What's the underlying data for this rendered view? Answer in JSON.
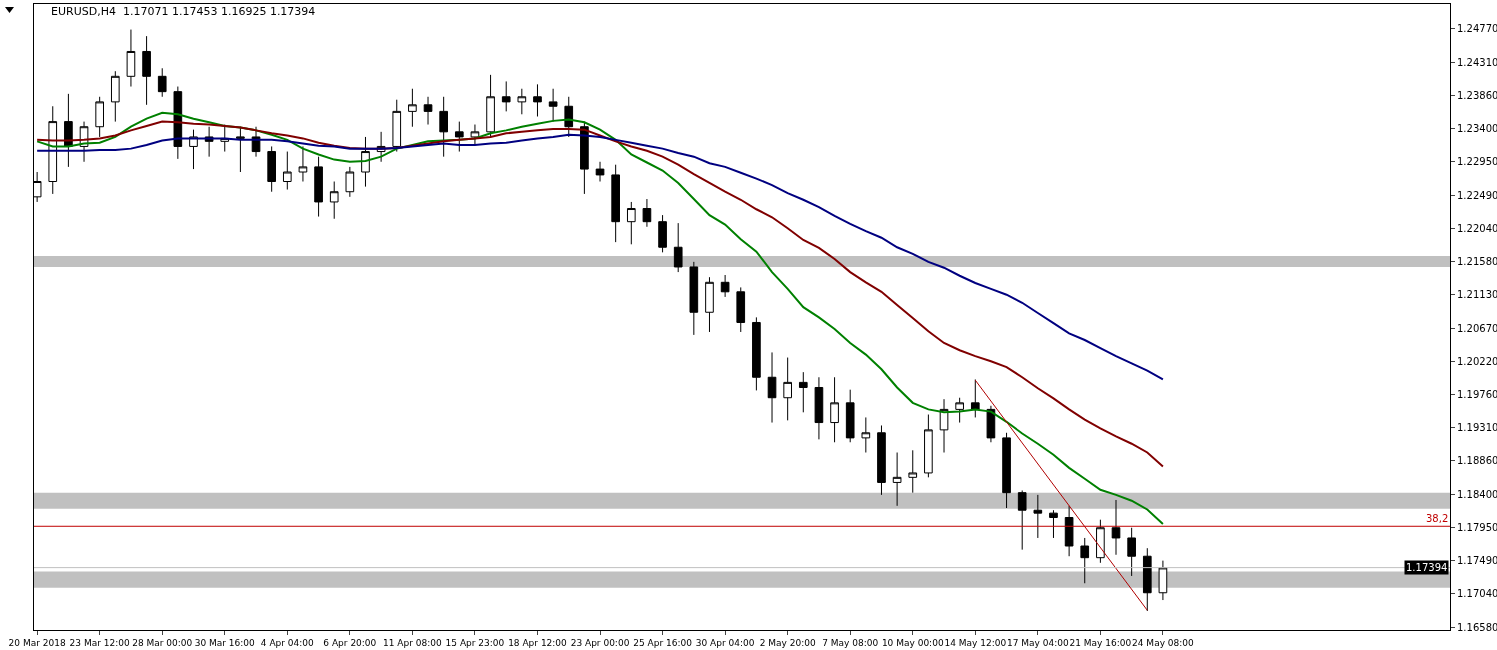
{
  "chart_data": {
    "type": "candlestick",
    "title": "EURUSD,H4  1.17071 1.17453 1.16925 1.17394",
    "categories": [
      "20 Mar 2018",
      null,
      null,
      null,
      "23 Mar 12:00",
      null,
      null,
      null,
      "28 Mar 00:00",
      null,
      null,
      null,
      "30 Mar 16:00",
      null,
      null,
      null,
      "4 Apr 04:00",
      null,
      null,
      null,
      "6 Apr 20:00",
      null,
      null,
      null,
      "11 Apr 08:00",
      null,
      null,
      null,
      "15 Apr 23:00",
      null,
      null,
      null,
      "18 Apr 12:00",
      null,
      null,
      null,
      "23 Apr 00:00",
      null,
      null,
      null,
      "25 Apr 16:00",
      null,
      null,
      null,
      "30 Apr 04:00",
      null,
      null,
      null,
      "2 May 20:00",
      null,
      null,
      null,
      "7 May 08:00",
      null,
      null,
      null,
      "10 May 00:00",
      null,
      null,
      null,
      "14 May 12:00",
      null,
      null,
      null,
      "17 May 04:00",
      null,
      null,
      null,
      "21 May 16:00",
      null,
      null,
      null,
      "24 May 08:00"
    ],
    "ohlc": [
      [
        1.2247,
        1.2281,
        1.224,
        1.2268
      ],
      [
        1.2268,
        1.2371,
        1.2251,
        1.235
      ],
      [
        1.235,
        1.2388,
        1.2288,
        1.2316
      ],
      [
        1.2316,
        1.235,
        1.2295,
        1.2343
      ],
      [
        1.2343,
        1.2384,
        1.2329,
        1.2377
      ],
      [
        1.2377,
        1.2419,
        1.235,
        1.2412
      ],
      [
        1.2412,
        1.2476,
        1.2398,
        1.2446
      ],
      [
        1.2446,
        1.2467,
        1.2373,
        1.2412
      ],
      [
        1.2412,
        1.2423,
        1.2384,
        1.2391
      ],
      [
        1.2391,
        1.2398,
        1.2299,
        1.2316
      ],
      [
        1.2316,
        1.2339,
        1.2285,
        1.2329
      ],
      [
        1.2329,
        1.2343,
        1.2302,
        1.2323
      ],
      [
        1.2323,
        1.2346,
        1.2309,
        1.2327
      ],
      [
        1.2327,
        1.2343,
        1.2281,
        1.2329
      ],
      [
        1.2329,
        1.2343,
        1.2302,
        1.2309
      ],
      [
        1.2309,
        1.2316,
        1.2254,
        1.2268
      ],
      [
        1.2268,
        1.2309,
        1.2257,
        1.2281
      ],
      [
        1.2281,
        1.2316,
        1.2268,
        1.2288
      ],
      [
        1.2288,
        1.2302,
        1.222,
        1.224
      ],
      [
        1.224,
        1.2268,
        1.2217,
        1.2254
      ],
      [
        1.2254,
        1.2288,
        1.2247,
        1.2281
      ],
      [
        1.2281,
        1.2329,
        1.2261,
        1.2309
      ],
      [
        1.2309,
        1.2336,
        1.2295,
        1.2316
      ],
      [
        1.2316,
        1.238,
        1.2309,
        1.2364
      ],
      [
        1.2364,
        1.2395,
        1.2343,
        1.2373
      ],
      [
        1.2373,
        1.2384,
        1.2346,
        1.2364
      ],
      [
        1.2364,
        1.2384,
        1.2302,
        1.2336
      ],
      [
        1.2336,
        1.235,
        1.2309,
        1.2329
      ],
      [
        1.2329,
        1.2346,
        1.2318,
        1.2336
      ],
      [
        1.2336,
        1.2414,
        1.2329,
        1.2384
      ],
      [
        1.2384,
        1.2405,
        1.2364,
        1.2377
      ],
      [
        1.2377,
        1.2395,
        1.236,
        1.2384
      ],
      [
        1.2384,
        1.2401,
        1.2357,
        1.2377
      ],
      [
        1.2377,
        1.2395,
        1.235,
        1.2371
      ],
      [
        1.2371,
        1.2384,
        1.2329,
        1.2343
      ],
      [
        1.2343,
        1.235,
        1.2251,
        1.2285
      ],
      [
        1.2285,
        1.2295,
        1.2268,
        1.2277
      ],
      [
        1.2277,
        1.2291,
        1.2185,
        1.2213
      ],
      [
        1.2213,
        1.224,
        1.2182,
        1.2231
      ],
      [
        1.2231,
        1.2244,
        1.2206,
        1.2213
      ],
      [
        1.2213,
        1.2222,
        1.2171,
        1.2178
      ],
      [
        1.2178,
        1.2211,
        1.2144,
        1.2151
      ],
      [
        1.2151,
        1.2158,
        1.2058,
        1.2089
      ],
      [
        1.2089,
        1.2137,
        1.2062,
        1.213
      ],
      [
        1.213,
        1.214,
        1.211,
        1.2117
      ],
      [
        1.2117,
        1.2123,
        1.2062,
        1.2075
      ],
      [
        1.2075,
        1.2082,
        1.1982,
        1.2
      ],
      [
        1.2,
        1.2034,
        1.1938,
        1.1972
      ],
      [
        1.1972,
        1.2027,
        1.1941,
        1.1993
      ],
      [
        1.1993,
        1.2007,
        1.1952,
        1.1986
      ],
      [
        1.1986,
        1.2,
        1.1915,
        1.1938
      ],
      [
        1.1938,
        1.2,
        1.1911,
        1.1965
      ],
      [
        1.1965,
        1.1983,
        1.1911,
        1.1917
      ],
      [
        1.1917,
        1.1945,
        1.1897,
        1.1924
      ],
      [
        1.1924,
        1.1934,
        1.1839,
        1.1856
      ],
      [
        1.1856,
        1.1897,
        1.1824,
        1.1863
      ],
      [
        1.1863,
        1.19,
        1.1842,
        1.1869
      ],
      [
        1.1869,
        1.1949,
        1.1863,
        1.1928
      ],
      [
        1.1928,
        1.197,
        1.1897,
        1.1956
      ],
      [
        1.1956,
        1.1972,
        1.1938,
        1.1965
      ],
      [
        1.1965,
        1.1997,
        1.1945,
        1.1956
      ],
      [
        1.1956,
        1.1961,
        1.1911,
        1.1917
      ],
      [
        1.1917,
        1.1924,
        1.1821,
        1.1842
      ],
      [
        1.1842,
        1.1845,
        1.1764,
        1.1818
      ],
      [
        1.1818,
        1.1839,
        1.178,
        1.1814
      ],
      [
        1.1814,
        1.1818,
        1.178,
        1.1808
      ],
      [
        1.1808,
        1.1824,
        1.1755,
        1.1769
      ],
      [
        1.1769,
        1.178,
        1.1718,
        1.1753
      ],
      [
        1.1753,
        1.1805,
        1.1746,
        1.1794
      ],
      [
        1.1794,
        1.1832,
        1.1757,
        1.178
      ],
      [
        1.178,
        1.1794,
        1.1728,
        1.1755
      ],
      [
        1.1755,
        1.1766,
        1.168,
        1.1705
      ],
      [
        1.1705,
        1.1749,
        1.1695,
        1.1739
      ]
    ],
    "series": [
      {
        "type": "line",
        "color": "#008000",
        "values": [
          1.2323,
          1.2316,
          1.2316,
          1.232,
          1.2321,
          1.2329,
          1.2343,
          1.2354,
          1.2362,
          1.236,
          1.2354,
          1.2349,
          1.2344,
          1.2342,
          1.2338,
          1.2332,
          1.2325,
          1.2313,
          1.2305,
          1.2298,
          1.2295,
          1.2296,
          1.2302,
          1.2313,
          1.2318,
          1.2323,
          1.2324,
          1.2325,
          1.2327,
          1.2334,
          1.2338,
          1.2343,
          1.2347,
          1.2351,
          1.2353,
          1.2349,
          1.2339,
          1.2325,
          1.2305,
          1.2294,
          1.2283,
          1.2266,
          1.2244,
          1.2222,
          1.2209,
          1.2189,
          1.2172,
          1.2144,
          1.2121,
          1.2096,
          1.2082,
          1.2066,
          1.2047,
          1.2031,
          1.2011,
          1.1986,
          1.1965,
          1.1956,
          1.1952,
          1.1953,
          1.1956,
          1.1953,
          1.1939,
          1.1923,
          1.1909,
          1.1894,
          1.1876,
          1.1861,
          1.1846,
          1.1839,
          1.1831,
          1.1819,
          1.1799
        ]
      },
      {
        "type": "line",
        "color": "#800000",
        "values": [
          1.2325,
          1.2324,
          1.2324,
          1.2325,
          1.2327,
          1.2331,
          1.2338,
          1.2344,
          1.235,
          1.2349,
          1.2347,
          1.2346,
          1.2344,
          1.2342,
          1.2338,
          1.2334,
          1.2331,
          1.2327,
          1.2321,
          1.2317,
          1.2314,
          1.2313,
          1.2313,
          1.2314,
          1.2317,
          1.232,
          1.2323,
          1.2325,
          1.2327,
          1.2329,
          1.2334,
          1.2336,
          1.2338,
          1.234,
          1.234,
          1.2339,
          1.2331,
          1.2323,
          1.2316,
          1.231,
          1.2302,
          1.2291,
          1.2278,
          1.2266,
          1.2254,
          1.2243,
          1.223,
          1.2219,
          1.2204,
          1.2188,
          1.2177,
          1.2162,
          1.2144,
          1.213,
          1.2117,
          1.2099,
          1.2081,
          1.2063,
          1.2047,
          1.2037,
          1.2029,
          1.2022,
          1.2014,
          1.2,
          1.1985,
          1.1971,
          1.1956,
          1.1942,
          1.193,
          1.1919,
          1.1909,
          1.1897,
          1.1878
        ]
      },
      {
        "type": "line",
        "color": "#000080",
        "values": [
          1.231,
          1.231,
          1.231,
          1.231,
          1.2311,
          1.2311,
          1.2313,
          1.2318,
          1.2324,
          1.2327,
          1.2327,
          1.2327,
          1.2327,
          1.2325,
          1.2325,
          1.2325,
          1.2323,
          1.232,
          1.2317,
          1.2316,
          1.2313,
          1.2313,
          1.2313,
          1.2314,
          1.2316,
          1.2318,
          1.232,
          1.2318,
          1.2318,
          1.232,
          1.2321,
          1.2324,
          1.2327,
          1.2329,
          1.2332,
          1.2331,
          1.2329,
          1.2325,
          1.2321,
          1.2317,
          1.2313,
          1.2307,
          1.2302,
          1.2293,
          1.2288,
          1.228,
          1.2272,
          1.2263,
          1.2252,
          1.2243,
          1.2233,
          1.2221,
          1.221,
          1.22,
          1.2191,
          1.2178,
          1.2169,
          1.2158,
          1.215,
          1.2139,
          1.2129,
          1.2121,
          1.2113,
          1.2102,
          1.2088,
          1.2074,
          1.206,
          1.2051,
          1.204,
          1.2029,
          1.2019,
          1.2009,
          1.1997
        ]
      },
      {
        "type": "line",
        "color": "#b00000",
        "values": [
          null,
          null,
          null,
          null,
          null,
          null,
          null,
          null,
          null,
          null,
          null,
          null,
          null,
          null,
          null,
          null,
          null,
          null,
          null,
          null,
          null,
          null,
          null,
          null,
          null,
          null,
          null,
          null,
          null,
          null,
          null,
          null,
          null,
          null,
          null,
          null,
          null,
          null,
          null,
          null,
          null,
          null,
          null,
          null,
          null,
          null,
          null,
          null,
          null,
          null,
          null,
          null,
          null,
          null,
          null,
          null,
          null,
          null,
          null,
          null,
          1.1996,
          null,
          null,
          null,
          null,
          null,
          null,
          null,
          null,
          null,
          null,
          1.1681,
          null
        ]
      }
    ],
    "ylim": [
      1.1654,
      1.2511
    ],
    "yticks": [
      {
        "value": 1.2477,
        "label": "1.24770"
      },
      {
        "value": 1.2431,
        "label": "1.24310"
      },
      {
        "value": 1.2386,
        "label": "1.23860"
      },
      {
        "value": 1.234,
        "label": "1.23400"
      },
      {
        "value": 1.2295,
        "label": "1.22950"
      },
      {
        "value": 1.2249,
        "label": "1.22490"
      },
      {
        "value": 1.2204,
        "label": "1.22040"
      },
      {
        "value": 1.2158,
        "label": "1.21580"
      },
      {
        "value": 1.2113,
        "label": "1.21130"
      },
      {
        "value": 1.2067,
        "label": "1.20670"
      },
      {
        "value": 1.2022,
        "label": "1.20220"
      },
      {
        "value": 1.1976,
        "label": "1.19760"
      },
      {
        "value": 1.1931,
        "label": "1.19310"
      },
      {
        "value": 1.1886,
        "label": "1.18860"
      },
      {
        "value": 1.184,
        "label": "1.18400"
      },
      {
        "value": 1.1795,
        "label": "1.17950"
      },
      {
        "value": 1.1749,
        "label": "1.17490"
      },
      {
        "value": 1.1704,
        "label": "1.17040"
      },
      {
        "value": 1.1658,
        "label": "1.16580"
      }
    ],
    "bands": [
      {
        "axis": "y",
        "from": 1.2151,
        "to": 1.2166,
        "color": "#c0c0c0"
      },
      {
        "axis": "y",
        "from": 1.182,
        "to": 1.1842,
        "color": "#c0c0c0"
      },
      {
        "axis": "y",
        "from": 1.1712,
        "to": 1.1734,
        "color": "#c0c0c0"
      }
    ],
    "annotations": [
      {
        "text": "38,2",
        "y": 1.1796
      }
    ],
    "ref_lines": [
      {
        "axis": "y",
        "value": 1.1796,
        "color": "#c00000"
      },
      {
        "axis": "y",
        "value": 1.17394,
        "label": "1.17394",
        "color": "#c0c0c0"
      }
    ],
    "grid": false
  }
}
